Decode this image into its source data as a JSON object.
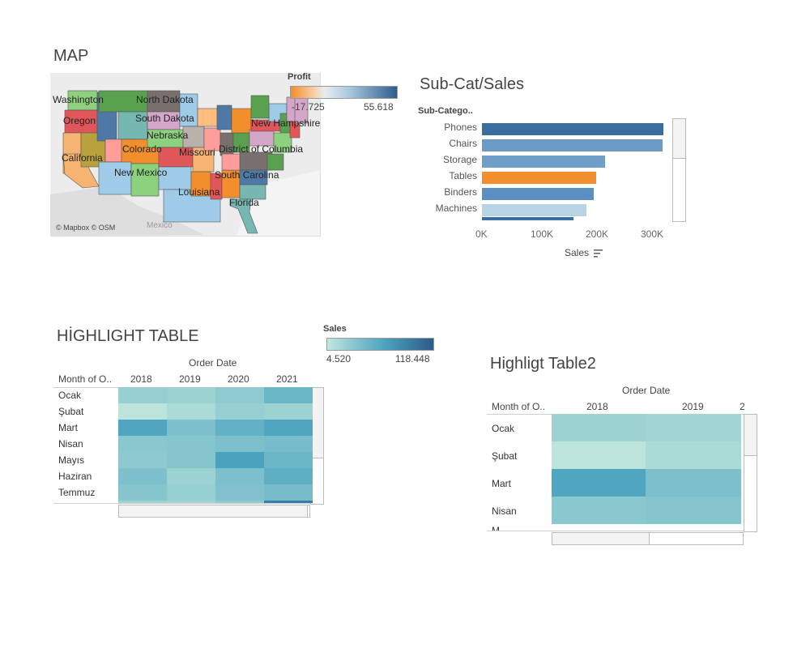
{
  "map": {
    "title": "MAP",
    "states": [
      "Washington",
      "North Dakota",
      "Oregon",
      "South Dakota",
      "New Hampshire",
      "Nebraska",
      "Colorado",
      "Missouri",
      "District of Columbia",
      "California",
      "New Mexico",
      "South Carolina",
      "Louisiana",
      "Florida"
    ],
    "attribution": "© Mapbox © OSM",
    "country_label": "Mexico",
    "legend": {
      "title": "Profit",
      "min": "-17.725",
      "max": "55.618",
      "color_low": "#f28e2b",
      "color_high": "#2f5e8e"
    }
  },
  "subcat": {
    "title": "Sub-Cat/Sales",
    "column_header": "Sub-Catego..",
    "axis_label": "Sales",
    "sort_icon": "sort-descending-icon",
    "ticks": [
      "0K",
      "100K",
      "200K",
      "300K"
    ],
    "chart_data": {
      "type": "bar",
      "categories": [
        "Phones",
        "Chairs",
        "Storage",
        "Tables",
        "Binders",
        "Machines"
      ],
      "values": [
        330000,
        328000,
        224000,
        207000,
        203000,
        189000
      ],
      "colors": [
        "#3a6e9f",
        "#6a9bc7",
        "#6f9fc9",
        "#f28e2b",
        "#5b8fc1",
        "#b8d3e2"
      ],
      "xlabel": "Sales",
      "xlim": [
        0,
        360000
      ]
    }
  },
  "highlight1": {
    "title": "HİGHLIGHT TABLE",
    "column_group": "Order Date",
    "row_header": "Month of O..",
    "years": [
      "2018",
      "2019",
      "2020",
      "2021"
    ],
    "months": [
      "Ocak",
      "Şubat",
      "Mart",
      "Nisan",
      "Mayıs",
      "Haziran",
      "Temmuz"
    ],
    "legend": {
      "title": "Sales",
      "min": "4.520",
      "max": "118.448",
      "color_low": "#c4e6df",
      "color_high": "#2e5a87"
    },
    "cell_colors": [
      [
        "#96cfd1",
        "#9dd2d3",
        "#8fcad0",
        "#6bb7c8"
      ],
      [
        "#bce4db",
        "#aadbd7",
        "#96cfd1",
        "#9dd2d3"
      ],
      [
        "#50a6c0",
        "#7ebfcc",
        "#63b1c6",
        "#50a6c0"
      ],
      [
        "#8ac8cf",
        "#85c5ce",
        "#7ebfcc",
        "#78bccb"
      ],
      [
        "#8dc9cf",
        "#86c5ce",
        "#4aa2be",
        "#6bb7c8"
      ],
      [
        "#7ec0cc",
        "#9dd2d3",
        "#7ebfcc",
        "#5eaec4"
      ],
      [
        "#85c5ce",
        "#96cfd1",
        "#80c1cd",
        "#78bccb"
      ]
    ]
  },
  "highlight2": {
    "title": "Highligt Table2",
    "column_group": "Order Date",
    "row_header": "Month of O..",
    "years": [
      "2018",
      "2019",
      "2"
    ],
    "months": [
      "Ocak",
      "Şubat",
      "Mart",
      "Nisan",
      "M"
    ],
    "cell_colors": [
      [
        "#9dd2d3",
        "#a2d4d5"
      ],
      [
        "#bce4db",
        "#aadbd7"
      ],
      [
        "#50a6c0",
        "#7ebfcc"
      ],
      [
        "#8ac8cf",
        "#85c5ce"
      ]
    ]
  }
}
